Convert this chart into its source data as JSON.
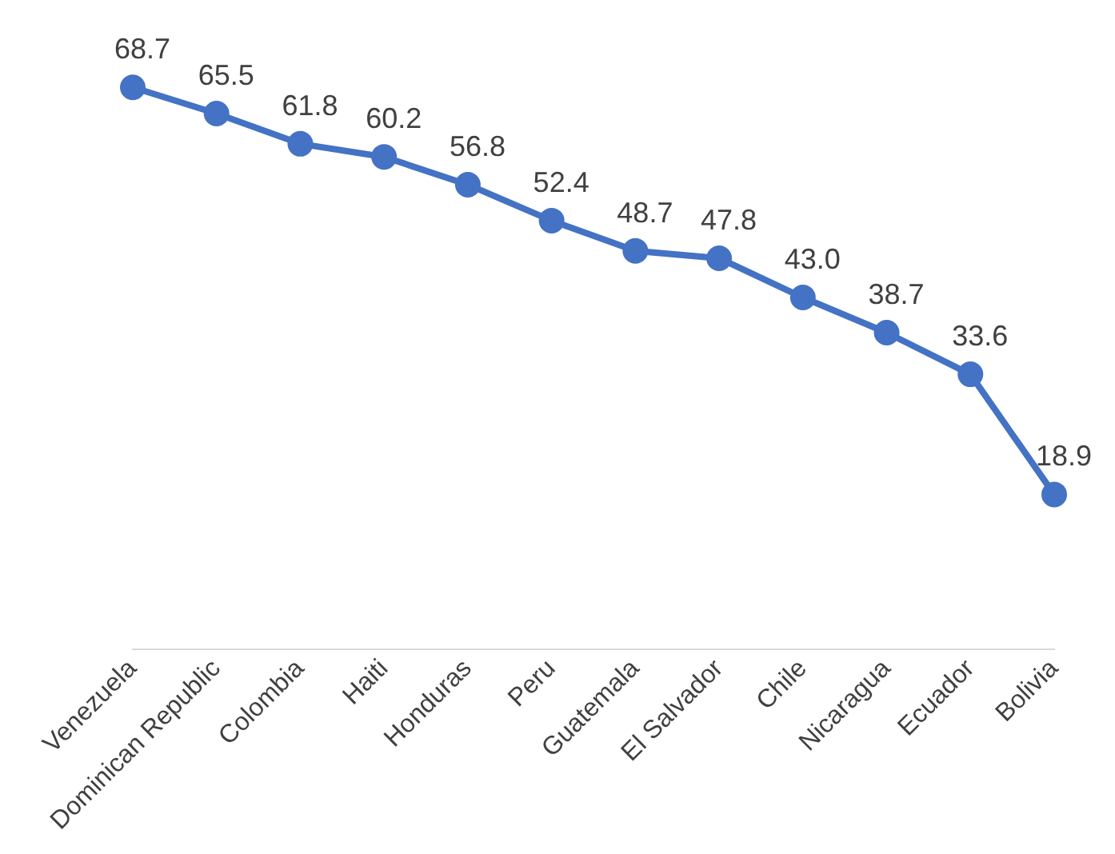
{
  "chart_data": {
    "type": "line",
    "categories": [
      "Venezuela",
      "Dominican Republic",
      "Colombia",
      "Haiti",
      "Honduras",
      "Peru",
      "Guatemala",
      "El Salvador",
      "Chile",
      "Nicaragua",
      "Ecuador",
      "Bolivia"
    ],
    "series": [
      {
        "color": "#4472c4",
        "values": [
          68.7,
          65.5,
          61.8,
          60.2,
          56.8,
          52.4,
          48.7,
          47.8,
          43.0,
          38.7,
          33.6,
          18.9
        ],
        "value_labels": [
          "68.7",
          "65.5",
          "61.8",
          "60.2",
          "56.8",
          "52.4",
          "48.7",
          "47.8",
          "43.0",
          "38.7",
          "33.6",
          "18.9"
        ]
      }
    ],
    "data_labels": false,
    "marker": "circle",
    "line_style": "solid",
    "grid": false,
    "legend": false,
    "tick_labels": "x"
  }
}
